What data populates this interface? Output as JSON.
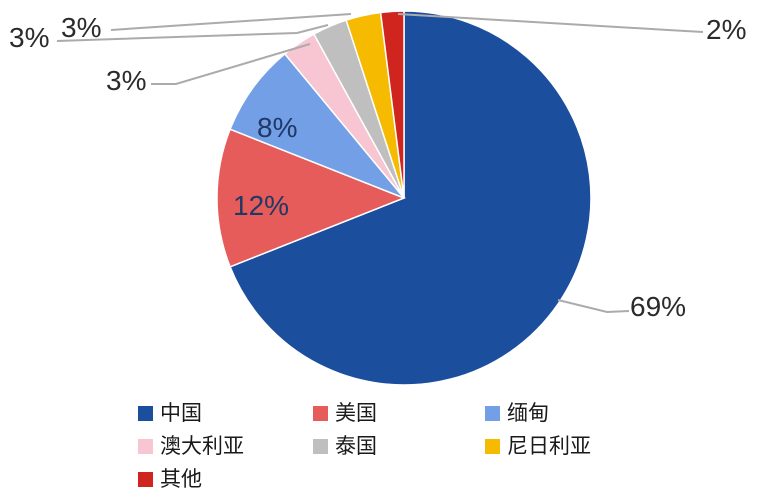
{
  "chart_data": {
    "type": "pie",
    "title": "",
    "unit": "%",
    "direction": "clockwise",
    "start_angle_deg": 0,
    "legend_position": "bottom",
    "background": "#FFFFFF",
    "leader_line_color": "#ABABAB",
    "label_color_outside": "#2B2B2B",
    "label_color_inside": "#203864",
    "slices": [
      {
        "id": "china",
        "label": "中国",
        "value": 69,
        "pct_label": "69%",
        "color": "#1B4F9E",
        "label_placement": "outside"
      },
      {
        "id": "usa",
        "label": "美国",
        "value": 12,
        "pct_label": "12%",
        "color": "#E55C5B",
        "label_placement": "inside"
      },
      {
        "id": "myanmar",
        "label": "缅甸",
        "value": 8,
        "pct_label": "8%",
        "color": "#729FE5",
        "label_placement": "inside"
      },
      {
        "id": "australia",
        "label": "澳大利亚",
        "value": 3,
        "pct_label": "3%",
        "color": "#F7C6D2",
        "label_placement": "outside"
      },
      {
        "id": "thailand",
        "label": "泰国",
        "value": 3,
        "pct_label": "3%",
        "color": "#BFBFBF",
        "label_placement": "outside"
      },
      {
        "id": "nigeria",
        "label": "尼日利亚",
        "value": 3,
        "pct_label": "3%",
        "color": "#F6BA00",
        "label_placement": "outside"
      },
      {
        "id": "other",
        "label": "其他",
        "value": 2,
        "pct_label": "2%",
        "color": "#D0241F",
        "label_placement": "outside"
      }
    ]
  }
}
